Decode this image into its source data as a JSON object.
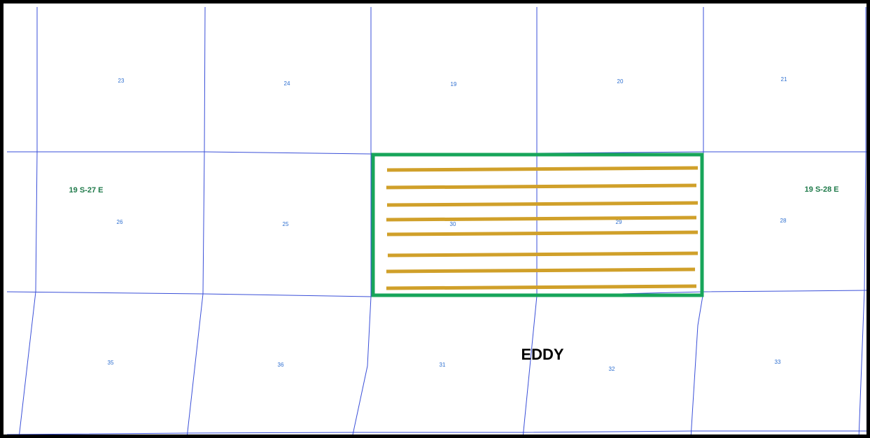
{
  "map": {
    "colors": {
      "grid": "#3a4fd8",
      "section_label": "#2e6fd0",
      "township_label": "#1f7a4a",
      "county_label": "#000000",
      "highlight": "#17a55a",
      "well_lines": "#d0a02a",
      "frame": "#000000"
    },
    "county": "EDDY",
    "townships": {
      "west": "19 S-27 E",
      "east": "19 S-28 E"
    },
    "sections": {
      "row1": [
        "23",
        "24",
        "19",
        "20",
        "21"
      ],
      "row2": [
        "26",
        "25",
        "30",
        "29",
        "28"
      ],
      "row3": [
        "35",
        "36",
        "31",
        "32",
        "33"
      ]
    },
    "highlighted_area": {
      "sections": [
        "30",
        "29"
      ],
      "lateral_count": 8
    }
  }
}
